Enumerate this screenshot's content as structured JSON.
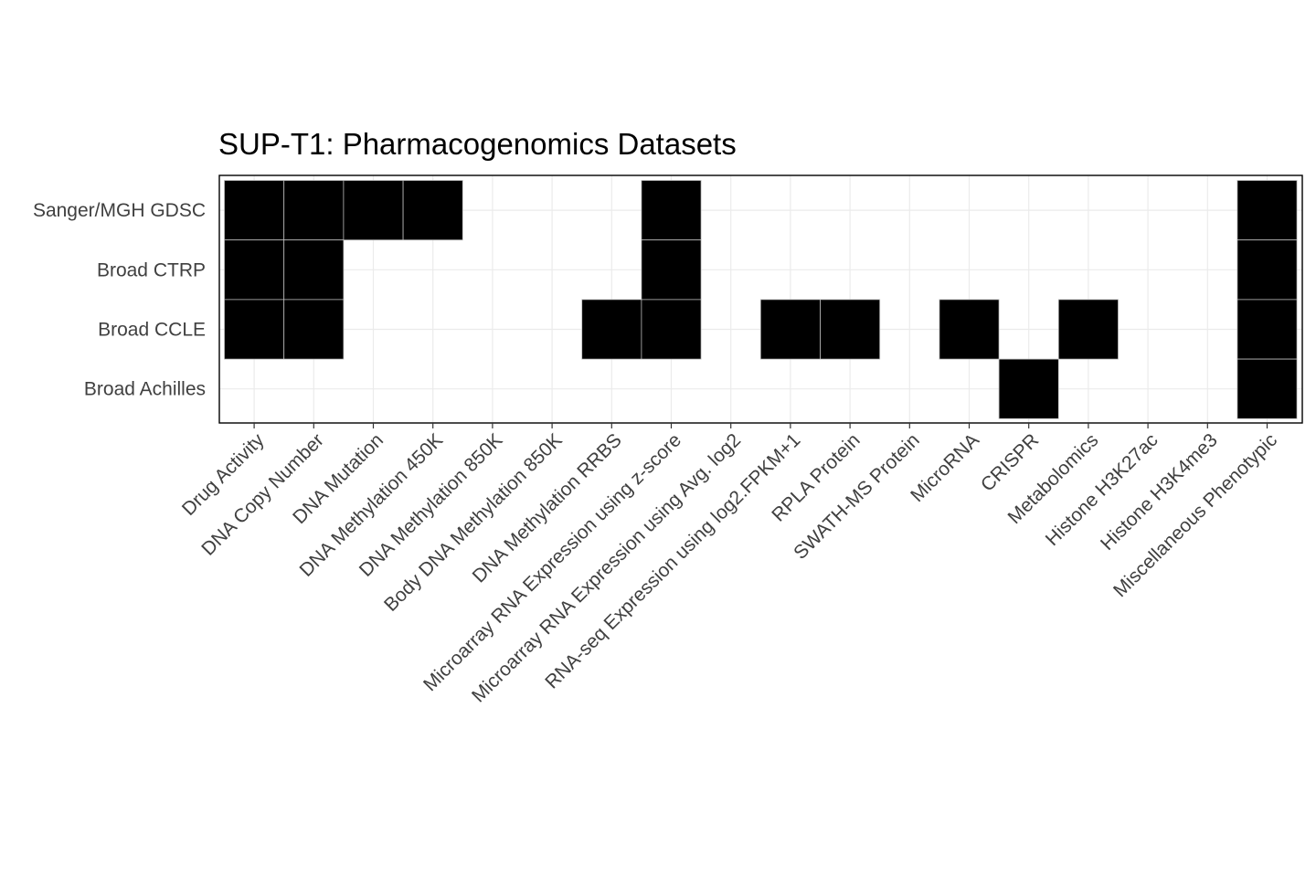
{
  "chart_data": {
    "type": "heatmap",
    "title": "SUP-T1: Pharmacogenomics Datasets",
    "xlabel": "",
    "ylabel": "",
    "x_categories": [
      "Drug Activity",
      "DNA Copy Number",
      "DNA Mutation",
      "DNA Methylation 450K",
      "DNA Methylation 850K",
      "Body DNA Methylation 850K",
      "DNA Methylation RRBS",
      "Microarray RNA Expression using z-score",
      "Microarray RNA Expression using Avg. log2",
      "RNA-seq Expression using log2.FPKM+1",
      "RPLA Protein",
      "SWATH-MS Protein",
      "MicroRNA",
      "CRISPR",
      "Metabolomics",
      "Histone H3K27ac",
      "Histone H3K4me3",
      "Miscellaneous Phenotypic"
    ],
    "y_categories": [
      "Sanger/MGH GDSC",
      "Broad CTRP",
      "Broad CCLE",
      "Broad Achilles"
    ],
    "matrix": [
      [
        1,
        1,
        1,
        1,
        0,
        0,
        0,
        1,
        0,
        0,
        0,
        0,
        0,
        0,
        0,
        0,
        0,
        1
      ],
      [
        1,
        1,
        0,
        0,
        0,
        0,
        0,
        1,
        0,
        0,
        0,
        0,
        0,
        0,
        0,
        0,
        0,
        1
      ],
      [
        1,
        1,
        0,
        0,
        0,
        0,
        1,
        1,
        0,
        1,
        1,
        0,
        1,
        0,
        1,
        0,
        0,
        1
      ],
      [
        0,
        0,
        0,
        0,
        0,
        0,
        0,
        0,
        0,
        0,
        0,
        0,
        0,
        1,
        0,
        0,
        0,
        1
      ]
    ],
    "colors": {
      "present": "#000000",
      "absent": "#ffffff",
      "frame": "#000000",
      "grid": "#ebebeb",
      "cell_border": "#bdbdbd"
    },
    "grid": true,
    "legend": "none"
  }
}
